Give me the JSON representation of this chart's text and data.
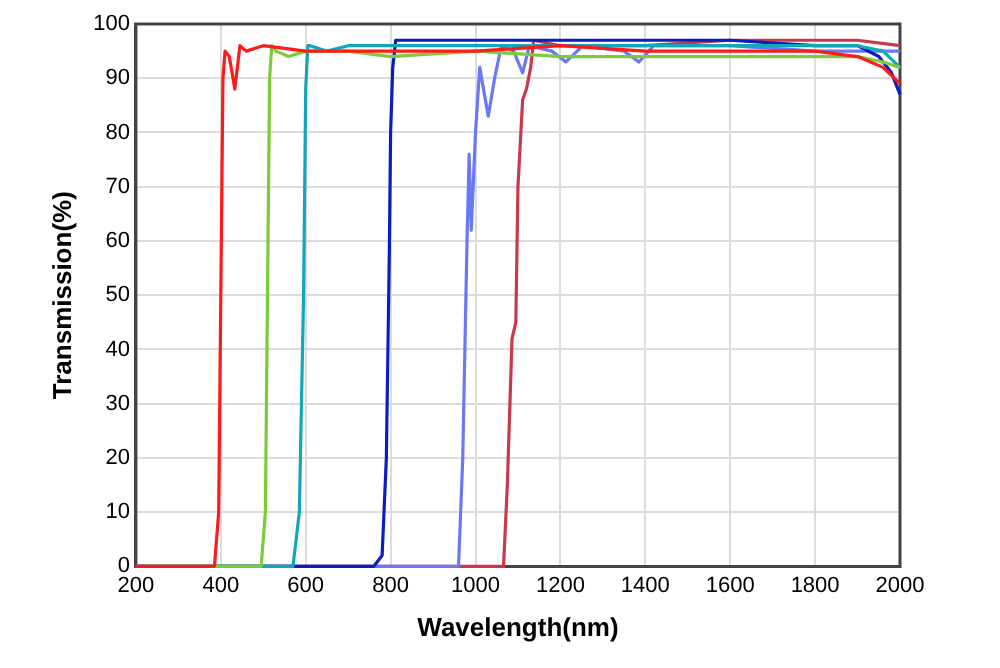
{
  "chart_data": {
    "type": "line",
    "xlabel": "Wavelength(nm)",
    "ylabel": "Transmission(%)",
    "xlim": [
      200,
      2000
    ],
    "ylim": [
      0,
      100
    ],
    "xticks": [
      200,
      400,
      600,
      800,
      1000,
      1200,
      1400,
      1600,
      1800,
      2000
    ],
    "yticks": [
      0,
      10,
      20,
      30,
      40,
      50,
      60,
      70,
      80,
      90,
      100
    ],
    "grid": true,
    "legend": false,
    "marker": "none",
    "line_style": "solid",
    "series": [
      {
        "color": "#ff1a1a",
        "x": [
          200,
          385,
          395,
          400,
          405,
          410,
          420,
          433,
          445,
          460,
          500,
          600,
          800,
          1000,
          1200,
          1400,
          1600,
          1800,
          1900,
          1960,
          2000
        ],
        "values": [
          0,
          0,
          10,
          50,
          90,
          95,
          94,
          88,
          96,
          95,
          96,
          95,
          95,
          95,
          96,
          95,
          95,
          95,
          94,
          92,
          89
        ]
      },
      {
        "color": "#7ccc3a",
        "x": [
          200,
          495,
          505,
          510,
          515,
          520,
          530,
          560,
          600,
          700,
          800,
          1000,
          1200,
          1400,
          1600,
          1800,
          1900,
          1960,
          2000
        ],
        "values": [
          0,
          0,
          10,
          50,
          90,
          96,
          95,
          94,
          95,
          95,
          94,
          95,
          94,
          94,
          94,
          94,
          94,
          93,
          92
        ]
      },
      {
        "color": "#13a6b8",
        "x": [
          200,
          570,
          585,
          595,
          600,
          605,
          610,
          650,
          700,
          800,
          1000,
          1200,
          1400,
          1600,
          1800,
          1900,
          1960,
          2000
        ],
        "values": [
          0,
          0,
          10,
          50,
          88,
          96,
          96,
          95,
          96,
          96,
          96,
          96,
          96,
          96,
          96,
          96,
          95,
          92
        ]
      },
      {
        "color": "#0a1ec0",
        "x": [
          200,
          760,
          780,
          790,
          797,
          800,
          805,
          812,
          850,
          1000,
          1200,
          1400,
          1600,
          1800,
          1900,
          1950,
          1980,
          2000
        ],
        "values": [
          0,
          0,
          2,
          20,
          58,
          80,
          92,
          97,
          97,
          97,
          97,
          97,
          97,
          96,
          96,
          94,
          91,
          87
        ]
      },
      {
        "color": "#6a78f5",
        "x": [
          200,
          960,
          970,
          980,
          985,
          990,
          1000,
          1010,
          1030,
          1045,
          1061,
          1090,
          1111,
          1127,
          1180,
          1213,
          1253,
          1350,
          1385,
          1420,
          1600,
          1800,
          2000
        ],
        "values": [
          0,
          0,
          20,
          60,
          76,
          62,
          80,
          92,
          83,
          90,
          96,
          95,
          91,
          96,
          95,
          93,
          96,
          95,
          93,
          96,
          96,
          95,
          95
        ]
      },
      {
        "color": "#c63a4c",
        "x": [
          200,
          1066,
          1075,
          1086,
          1095,
          1100,
          1111,
          1120,
          1130,
          1137,
          1200,
          1400,
          1600,
          1800,
          1900,
          2000
        ],
        "values": [
          0,
          0,
          15,
          42,
          45,
          70,
          86,
          88,
          92,
          97,
          96,
          96,
          97,
          97,
          97,
          96
        ]
      }
    ]
  }
}
